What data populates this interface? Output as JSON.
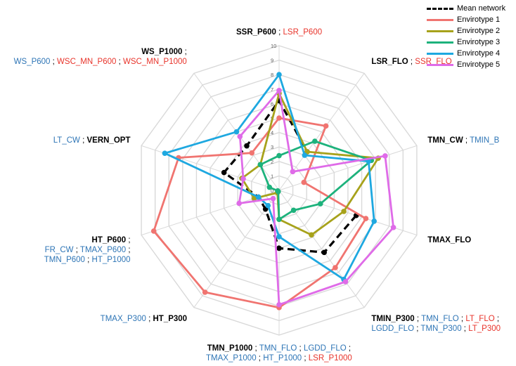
{
  "chart_data": {
    "type": "radar",
    "r_range": [
      0,
      10
    ],
    "r_ticks": [
      "0",
      "1",
      "2",
      "3",
      "4",
      "5",
      "6",
      "7",
      "8",
      "9",
      "10"
    ],
    "grid": true,
    "legend_position": "top-right",
    "axes": [
      {
        "lines": [
          [
            {
              "t": "SSR_P600",
              "c": "black"
            },
            {
              "t": " ; ",
              "c": "sep"
            },
            {
              "t": "LSR_P600",
              "c": "red"
            }
          ]
        ]
      },
      {
        "lines": [
          [
            {
              "t": "LSR_FLO",
              "c": "black"
            },
            {
              "t": " ; ",
              "c": "sep"
            },
            {
              "t": "SSR_FLO",
              "c": "red"
            }
          ]
        ]
      },
      {
        "lines": [
          [
            {
              "t": "TMN_CW",
              "c": "black"
            },
            {
              "t": " ; ",
              "c": "sep"
            },
            {
              "t": "TMIN_B",
              "c": "blue"
            }
          ]
        ]
      },
      {
        "lines": [
          [
            {
              "t": "TMAX_FLO",
              "c": "black"
            }
          ]
        ]
      },
      {
        "lines": [
          [
            {
              "t": "TMIN_P300",
              "c": "black"
            },
            {
              "t": " ; ",
              "c": "sep"
            },
            {
              "t": "TMN_FLO",
              "c": "blue"
            },
            {
              "t": " ; ",
              "c": "sep"
            },
            {
              "t": "LT_FLO",
              "c": "red"
            },
            {
              "t": " ;",
              "c": "sep"
            }
          ],
          [
            {
              "t": "LGDD_FLO",
              "c": "blue"
            },
            {
              "t": " ; ",
              "c": "sep"
            },
            {
              "t": "TMN_P300",
              "c": "blue"
            },
            {
              "t": " ; ",
              "c": "sep"
            },
            {
              "t": "LT_P300",
              "c": "red"
            }
          ]
        ]
      },
      {
        "lines": [
          [
            {
              "t": "TMN_P1000",
              "c": "black"
            },
            {
              "t": " ; ",
              "c": "sep"
            },
            {
              "t": "TMN_FLO",
              "c": "blue"
            },
            {
              "t": " ; ",
              "c": "sep"
            },
            {
              "t": "LGDD_FLO",
              "c": "blue"
            },
            {
              "t": " ;",
              "c": "sep"
            }
          ],
          [
            {
              "t": "TMAX_P1000",
              "c": "blue"
            },
            {
              "t": " ; ",
              "c": "sep"
            },
            {
              "t": "HT_P1000",
              "c": "blue"
            },
            {
              "t": " ; ",
              "c": "sep"
            },
            {
              "t": "LSR_P1000",
              "c": "red"
            }
          ]
        ]
      },
      {
        "lines": [
          [
            {
              "t": "TMAX_P300",
              "c": "blue"
            },
            {
              "t": " ; ",
              "c": "sep"
            },
            {
              "t": "HT_P300",
              "c": "black"
            }
          ]
        ]
      },
      {
        "lines": [
          [
            {
              "t": "HT_P600",
              "c": "black"
            },
            {
              "t": " ;",
              "c": "sep"
            }
          ],
          [
            {
              "t": "FR_CW",
              "c": "blue"
            },
            {
              "t": " ; ",
              "c": "sep"
            },
            {
              "t": "TMAX_P600",
              "c": "blue"
            },
            {
              "t": " ;",
              "c": "sep"
            }
          ],
          [
            {
              "t": "TMN_P600",
              "c": "blue"
            },
            {
              "t": " ; ",
              "c": "sep"
            },
            {
              "t": "HT_P1000",
              "c": "blue"
            }
          ]
        ]
      },
      {
        "lines": [
          [
            {
              "t": "LT_CW",
              "c": "blue"
            },
            {
              "t": " ; ",
              "c": "sep"
            },
            {
              "t": "VERN_OPT",
              "c": "black"
            }
          ]
        ]
      },
      {
        "lines": [
          [
            {
              "t": "WS_P1000",
              "c": "black"
            },
            {
              "t": " ;",
              "c": "sep"
            }
          ],
          [
            {
              "t": "WS_P600",
              "c": "blue"
            },
            {
              "t": " ; ",
              "c": "sep"
            },
            {
              "t": "WSC_MN_P600",
              "c": "red"
            },
            {
              "t": " ; ",
              "c": "sep"
            },
            {
              "t": "WSC_MN_P1000",
              "c": "red"
            }
          ]
        ]
      }
    ],
    "series": [
      {
        "name": "Mean network",
        "color": "#000000",
        "dashed": true,
        "markers": true,
        "values": [
          6.2,
          3.3,
          null,
          5.6,
          5.3,
          4.0,
          1.6,
          1.5,
          4.0,
          3.8
        ]
      },
      {
        "name": "Envirotype 1",
        "color": "#F07470",
        "dashed": false,
        "markers": true,
        "values": [
          5.0,
          5.5,
          1.8,
          6.3,
          6.6,
          8.1,
          8.7,
          9.1,
          7.3,
          3.2
        ]
      },
      {
        "name": "Envirotype 2",
        "color": "#A7A21B",
        "dashed": false,
        "markers": true,
        "values": [
          6.7,
          3.3,
          7.2,
          4.7,
          3.8,
          2.0,
          0.2,
          1.8,
          2.7,
          2.2
        ]
      },
      {
        "name": "Envirotype 3",
        "color": "#1DB27C",
        "dashed": false,
        "markers": true,
        "values": [
          2.4,
          4.2,
          6.7,
          3.0,
          1.7,
          2.0,
          0.1,
          0.1,
          0.7,
          2.2
        ]
      },
      {
        "name": "Envirotype 4",
        "color": "#1EA8E0",
        "dashed": false,
        "markers": true,
        "values": [
          8.0,
          3.0,
          6.5,
          6.9,
          7.6,
          3.2,
          1.3,
          1.5,
          8.3,
          5.0
        ]
      },
      {
        "name": "Envirotype 5",
        "color": "#DF6BE8",
        "dashed": false,
        "markers": true,
        "values": [
          6.9,
          1.6,
          7.7,
          8.3,
          7.8,
          7.9,
          0.7,
          2.9,
          2.6,
          4.6
        ]
      }
    ]
  }
}
